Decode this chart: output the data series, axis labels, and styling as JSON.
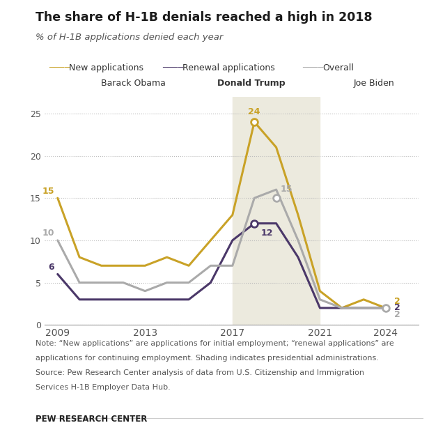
{
  "title": "The share of H-1B denials reached a high in 2018",
  "subtitle": "% of H-1B applications denied each year",
  "years": [
    2009,
    2010,
    2011,
    2012,
    2013,
    2014,
    2015,
    2016,
    2017,
    2018,
    2019,
    2020,
    2021,
    2022,
    2023,
    2024
  ],
  "new_applications": [
    15,
    8,
    7,
    7,
    7,
    8,
    7,
    10,
    13,
    24,
    21,
    13,
    4,
    2,
    3,
    2
  ],
  "renewal_applications": [
    6,
    3,
    3,
    3,
    3,
    3,
    3,
    5,
    10,
    12,
    12,
    8,
    2,
    2,
    2,
    2
  ],
  "overall": [
    10,
    5,
    5,
    5,
    4,
    5,
    5,
    7,
    7,
    15,
    16,
    10,
    3,
    2,
    2,
    2
  ],
  "new_color": "#C9A227",
  "renewal_color": "#4B3869",
  "overall_color": "#AAAAAA",
  "trump_shade_color": "#ECEADE",
  "trump_shade_start": 2017,
  "trump_shade_end": 2021,
  "background_color": "#ffffff",
  "note_line1": "Note: “New applications” are applications for initial employment; “renewal applications” are",
  "note_line2": "applications for continuing employment. Shading indicates presidential administrations.",
  "note_line3": "Source: Pew Research Center analysis of data from U.S. Citizenship and Immigration",
  "note_line4": "Services H-1B Employer Data Hub.",
  "source_label": "PEW RESEARCH CENTER",
  "ylim": [
    0,
    27
  ],
  "yticks": [
    0,
    5,
    10,
    15,
    20,
    25
  ],
  "xlim": [
    2008.4,
    2025.5
  ],
  "xticks": [
    2009,
    2013,
    2017,
    2021,
    2024
  ],
  "linewidth": 2.2
}
